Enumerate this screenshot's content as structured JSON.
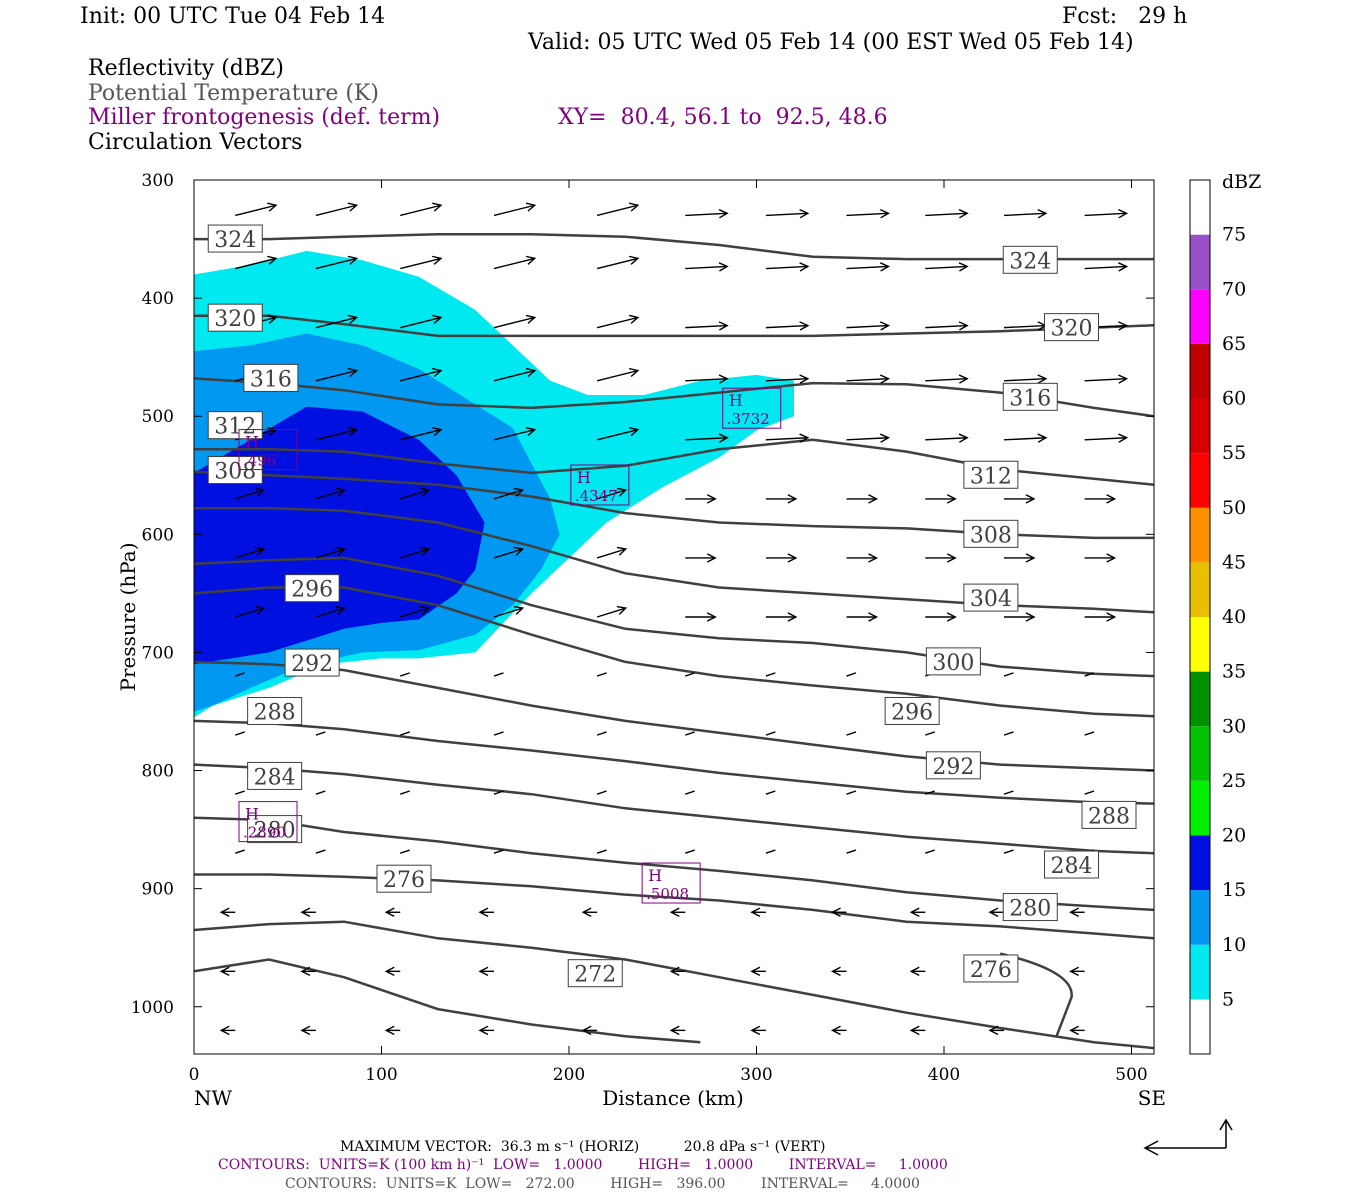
{
  "header": {
    "init": "Init: 00 UTC Tue 04 Feb 14",
    "fcst": "Fcst:   29 h",
    "valid": "Valid: 05 UTC Wed 05 Feb 14 (00 EST Wed 05 Feb 14)",
    "fields": [
      "Reflectivity (dBZ)",
      "Potential Temperature (K)",
      "Miller frontogenesis (def. term)",
      "Circulation Vectors"
    ],
    "xy": "XY=  80.4, 56.1 to  92.5, 48.6"
  },
  "footer": {
    "max_vector": "MAXIMUM VECTOR:  36.3 m s⁻¹ (HORIZ)          20.8 dPa s⁻¹ (VERT)",
    "contours_fronto": "CONTOURS:  UNITS=K (100 km h)⁻¹  LOW=   1.0000        HIGH=   1.0000        INTERVAL=     1.0000",
    "contours_theta": "CONTOURS:  UNITS=K  LOW=   272.00        HIGH=   396.00        INTERVAL=     4.0000"
  },
  "chart_data": {
    "type": "line",
    "title": "",
    "xlabel": "Distance (km)",
    "ylabel": "Pressure (hPa)",
    "xlim": [
      0,
      512
    ],
    "ylim": [
      1040,
      300
    ],
    "x_ticks": [
      0,
      100,
      200,
      300,
      400,
      500
    ],
    "y_ticks": [
      300,
      400,
      500,
      600,
      700,
      800,
      900,
      1000
    ],
    "x_endpoint_labels": [
      "NW",
      "SE"
    ],
    "colorbar": {
      "unit": "dBZ",
      "labels": [
        "5",
        "10",
        "15",
        "20",
        "25",
        "30",
        "35",
        "40",
        "45",
        "50",
        "55",
        "60",
        "65",
        "70",
        "75"
      ],
      "colors": [
        "#00e8f0",
        "#0098f0",
        "#0010e0",
        "#00f000",
        "#00c400",
        "#009000",
        "#ffff00",
        "#e8c000",
        "#ff9000",
        "#ff0000",
        "#d80000",
        "#c00000",
        "#ff00ff",
        "#9850c8",
        "#ffffff"
      ]
    },
    "theta_series": [
      {
        "name": "324",
        "x": [
          0,
          40,
          80,
          130,
          180,
          230,
          280,
          330,
          380,
          430,
          480,
          512
        ],
        "y": [
          350,
          350,
          348,
          346,
          346,
          348,
          355,
          365,
          367,
          367,
          367,
          367
        ]
      },
      {
        "name": "320",
        "x": [
          0,
          40,
          80,
          130,
          180,
          230,
          280,
          330,
          380,
          430,
          480,
          512
        ],
        "y": [
          415,
          415,
          422,
          432,
          432,
          432,
          432,
          432,
          430,
          428,
          425,
          423
        ]
      },
      {
        "name": "316",
        "x": [
          0,
          40,
          80,
          130,
          180,
          230,
          280,
          330,
          380,
          430,
          480,
          512
        ],
        "y": [
          468,
          472,
          478,
          490,
          493,
          488,
          480,
          472,
          473,
          480,
          493,
          500
        ]
      },
      {
        "name": "312",
        "x": [
          0,
          40,
          80,
          130,
          180,
          230,
          280,
          330,
          380,
          430,
          480,
          512
        ],
        "y": [
          528,
          528,
          530,
          540,
          548,
          542,
          528,
          520,
          530,
          545,
          553,
          558
        ]
      },
      {
        "name": "308",
        "x": [
          0,
          40,
          80,
          130,
          180,
          230,
          280,
          330,
          380,
          430,
          480,
          512
        ],
        "y": [
          547,
          550,
          553,
          558,
          568,
          582,
          590,
          593,
          595,
          600,
          603,
          603
        ]
      },
      {
        "name": "304",
        "x": [
          0,
          40,
          80,
          130,
          180,
          230,
          280,
          330,
          380,
          430,
          480,
          512
        ],
        "y": [
          578,
          578,
          580,
          590,
          610,
          633,
          645,
          650,
          655,
          660,
          663,
          666
        ]
      },
      {
        "name": "300",
        "x": [
          0,
          40,
          80,
          130,
          180,
          230,
          280,
          330,
          380,
          430,
          480,
          512
        ],
        "y": [
          625,
          622,
          620,
          635,
          660,
          680,
          688,
          692,
          700,
          712,
          718,
          720
        ]
      },
      {
        "name": "296",
        "x": [
          0,
          40,
          80,
          130,
          180,
          230,
          280,
          330,
          380,
          430,
          480,
          512
        ],
        "y": [
          650,
          645,
          645,
          660,
          685,
          708,
          720,
          728,
          735,
          745,
          752,
          754
        ]
      },
      {
        "name": "292",
        "x": [
          0,
          40,
          80,
          130,
          180,
          230,
          280,
          330,
          380,
          430,
          480,
          512
        ],
        "y": [
          708,
          710,
          715,
          730,
          745,
          758,
          768,
          778,
          788,
          795,
          798,
          800
        ]
      },
      {
        "name": "288",
        "x": [
          0,
          40,
          80,
          130,
          180,
          230,
          280,
          330,
          380,
          430,
          480,
          512
        ],
        "y": [
          758,
          760,
          765,
          775,
          783,
          792,
          802,
          810,
          818,
          823,
          827,
          828
        ]
      },
      {
        "name": "284",
        "x": [
          0,
          40,
          80,
          130,
          180,
          230,
          280,
          330,
          380,
          430,
          480,
          512
        ],
        "y": [
          795,
          798,
          803,
          812,
          820,
          832,
          840,
          848,
          856,
          862,
          868,
          870
        ]
      },
      {
        "name": "280",
        "x": [
          0,
          40,
          80,
          130,
          180,
          230,
          280,
          330,
          380,
          430,
          480,
          512
        ],
        "y": [
          840,
          842,
          852,
          860,
          870,
          878,
          885,
          893,
          903,
          910,
          915,
          918
        ]
      },
      {
        "name": "276",
        "x": [
          0,
          40,
          80,
          130,
          180,
          230,
          280,
          330,
          380,
          430,
          480,
          512
        ],
        "y": [
          888,
          888,
          890,
          893,
          898,
          905,
          910,
          918,
          928,
          932,
          938,
          942
        ]
      },
      {
        "name": "272",
        "x": [
          0,
          40,
          80,
          130,
          180,
          230,
          280,
          330,
          380,
          430,
          480,
          512
        ],
        "y": [
          935,
          930,
          928,
          942,
          950,
          960,
          975,
          990,
          1005,
          1018,
          1030,
          1035
        ]
      },
      {
        "name": "",
        "x": [
          0,
          40,
          80,
          130,
          180,
          230,
          270
        ],
        "y": [
          970,
          960,
          975,
          1002,
          1015,
          1025,
          1030
        ]
      }
    ],
    "theta_labels": [
      {
        "text": "324",
        "x": 22,
        "y": 350
      },
      {
        "text": "320",
        "x": 22,
        "y": 417
      },
      {
        "text": "316",
        "x": 41,
        "y": 468
      },
      {
        "text": "312",
        "x": 22,
        "y": 508
      },
      {
        "text": "308",
        "x": 22,
        "y": 546
      },
      {
        "text": "296",
        "x": 63,
        "y": 646
      },
      {
        "text": "292",
        "x": 63,
        "y": 709
      },
      {
        "text": "288",
        "x": 43,
        "y": 750
      },
      {
        "text": "284",
        "x": 43,
        "y": 805
      },
      {
        "text": "280",
        "x": 43,
        "y": 850
      },
      {
        "text": "276",
        "x": 112,
        "y": 892
      },
      {
        "text": "272",
        "x": 214,
        "y": 972
      },
      {
        "text": "324",
        "x": 446,
        "y": 368
      },
      {
        "text": "320",
        "x": 468,
        "y": 425
      },
      {
        "text": "316",
        "x": 446,
        "y": 484
      },
      {
        "text": "312",
        "x": 425,
        "y": 550
      },
      {
        "text": "308",
        "x": 425,
        "y": 600
      },
      {
        "text": "304",
        "x": 425,
        "y": 654
      },
      {
        "text": "300",
        "x": 405,
        "y": 708
      },
      {
        "text": "296",
        "x": 383,
        "y": 750
      },
      {
        "text": "292",
        "x": 405,
        "y": 796
      },
      {
        "text": "288",
        "x": 488,
        "y": 838
      },
      {
        "text": "284",
        "x": 468,
        "y": 880
      },
      {
        "text": "280",
        "x": 446,
        "y": 916
      },
      {
        "text": "276",
        "x": 425,
        "y": 968
      }
    ],
    "fronto_maxima": [
      {
        "text": "H",
        "value": ".3732",
        "x": 298,
        "y": 500
      },
      {
        "text": "H",
        "value": ".4347",
        "x": 217,
        "y": 565
      },
      {
        "text": "H",
        "value": ".5008",
        "x": 255,
        "y": 902
      },
      {
        "text": "H",
        "value": ".496",
        "x": 40,
        "y": 535
      },
      {
        "text": "H",
        "value": ".2890",
        "x": 40,
        "y": 850
      }
    ],
    "reflectivity_regions": [
      {
        "dbz": 5,
        "x": [
          0,
          30,
          60,
          90,
          120,
          150,
          170,
          190,
          210,
          240,
          270,
          300,
          320,
          320,
          300,
          280,
          250,
          220,
          200,
          180,
          165,
          150,
          120,
          100,
          70,
          40,
          10,
          0
        ],
        "y": [
          380,
          372,
          360,
          368,
          382,
          410,
          440,
          470,
          482,
          482,
          470,
          465,
          470,
          500,
          512,
          535,
          560,
          590,
          620,
          650,
          675,
          700,
          705,
          705,
          710,
          730,
          745,
          755
        ]
      },
      {
        "dbz": 10,
        "x": [
          0,
          30,
          60,
          90,
          120,
          150,
          170,
          180,
          190,
          195,
          185,
          170,
          150,
          120,
          90,
          60,
          30,
          10,
          0
        ],
        "y": [
          445,
          440,
          430,
          440,
          460,
          490,
          510,
          540,
          570,
          600,
          630,
          660,
          685,
          698,
          700,
          710,
          730,
          745,
          750
        ]
      },
      {
        "dbz": 15,
        "x": [
          0,
          30,
          60,
          90,
          120,
          140,
          155,
          150,
          140,
          120,
          100,
          80,
          60,
          40,
          20,
          0
        ],
        "y": [
          548,
          520,
          492,
          496,
          520,
          550,
          590,
          630,
          650,
          672,
          675,
          680,
          690,
          700,
          705,
          710
        ]
      }
    ],
    "vector_rows": [
      {
        "y": 330,
        "x": [
          22,
          65,
          110,
          160,
          215,
          262,
          305,
          348,
          390,
          432,
          475
        ],
        "u": [
          30,
          40,
          40,
          30,
          40,
          35,
          30,
          35,
          35,
          30,
          30
        ],
        "w": [
          8,
          10,
          12,
          5,
          2,
          2,
          2,
          2,
          2,
          0,
          0
        ]
      },
      {
        "y": 375,
        "x": [
          22,
          65,
          110,
          160,
          215,
          262,
          305,
          348,
          390,
          432,
          475
        ]
      },
      {
        "y": 425,
        "x": [
          22,
          65,
          110,
          160,
          215,
          262,
          305,
          348,
          390,
          432,
          475
        ]
      },
      {
        "y": 470,
        "x": [
          22,
          65,
          110,
          160,
          215,
          262,
          305,
          348,
          390,
          432,
          475
        ]
      },
      {
        "y": 520,
        "x": [
          22,
          65,
          110,
          160,
          215,
          262,
          305,
          348,
          390,
          432,
          475
        ]
      },
      {
        "y": 570,
        "x": [
          22,
          65,
          110,
          160,
          215,
          262,
          305,
          348,
          390,
          432,
          475
        ]
      },
      {
        "y": 620,
        "x": [
          22,
          65,
          110,
          160,
          215,
          262,
          305,
          348,
          390,
          432,
          475
        ]
      },
      {
        "y": 670,
        "x": [
          22,
          65,
          110,
          160,
          215,
          262,
          305,
          348,
          390,
          432,
          475
        ]
      },
      {
        "y": 720,
        "x": [
          22,
          65,
          110,
          160,
          215,
          262,
          305,
          348,
          390,
          432,
          475
        ]
      },
      {
        "y": 770,
        "x": [
          22,
          65,
          110,
          160,
          215,
          262,
          305,
          348,
          390,
          432,
          475
        ]
      },
      {
        "y": 820,
        "x": [
          22,
          65,
          110,
          160,
          215,
          262,
          305,
          348,
          390,
          432,
          475
        ]
      },
      {
        "y": 870,
        "x": [
          22,
          65,
          110,
          160,
          215,
          262,
          305,
          348,
          390,
          432,
          475
        ]
      },
      {
        "y": 920,
        "x": [
          22,
          65,
          110,
          160,
          215,
          262,
          305,
          348,
          390,
          432,
          475
        ]
      },
      {
        "y": 970,
        "x": [
          22,
          65,
          110,
          160,
          215,
          262,
          305,
          348,
          390,
          432,
          475
        ]
      },
      {
        "y": 1020,
        "x": [
          22,
          65,
          110,
          160,
          215,
          262,
          305,
          348,
          390,
          432,
          475
        ]
      }
    ],
    "grid": false
  }
}
